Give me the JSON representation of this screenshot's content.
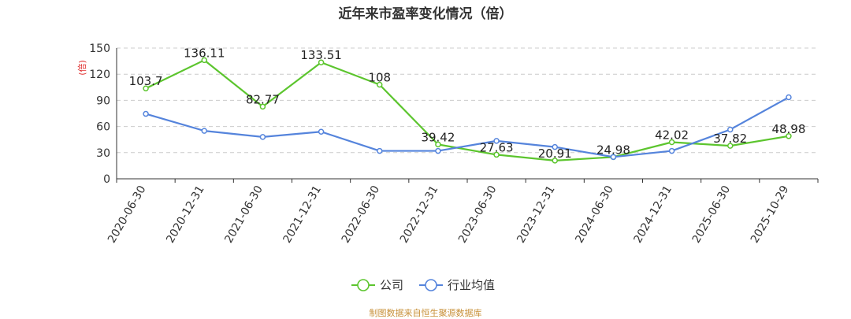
{
  "chart_data": {
    "type": "line",
    "title": "近年来市盈率变化情况（倍）",
    "ylabel": "(倍)",
    "xlabel": "",
    "ylim": [
      0,
      150
    ],
    "yticks": [
      0,
      30,
      60,
      90,
      120,
      150
    ],
    "grid": true,
    "legend_position": "bottom",
    "categories": [
      "2020-06-30",
      "2020-12-31",
      "2021-06-30",
      "2021-12-31",
      "2022-06-30",
      "2022-12-31",
      "2023-06-30",
      "2023-12-31",
      "2024-06-30",
      "2024-12-31",
      "2025-06-30",
      "2025-10-29"
    ],
    "series": [
      {
        "name": "公司",
        "color": "#5cc52e",
        "values": [
          103.7,
          136.11,
          82.77,
          133.51,
          108,
          39.42,
          27.63,
          20.91,
          24.98,
          42.02,
          37.82,
          48.98
        ],
        "labels": [
          "103.7",
          "136.11",
          "82.77",
          "133.51",
          "108",
          "39.42",
          "27.63",
          "20.91",
          "24.98",
          "42.02",
          "37.82",
          "48.98"
        ]
      },
      {
        "name": "行业均值",
        "color": "#5584dc",
        "values": [
          74.5,
          55,
          48,
          54,
          32,
          32,
          43.5,
          36.5,
          25,
          32,
          56.5,
          93.5
        ]
      }
    ]
  },
  "footer": {
    "source": "制图数据来自恒生聚源数据库"
  }
}
